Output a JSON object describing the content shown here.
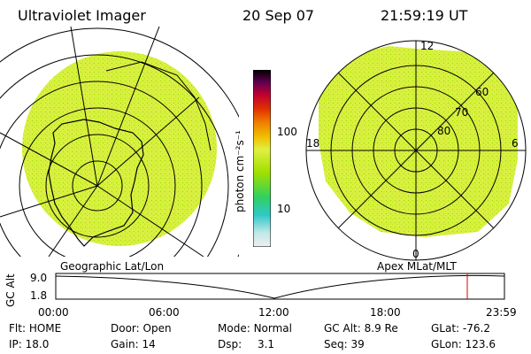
{
  "header": {
    "title": "Ultraviolet Imager",
    "date": "20 Sep 07",
    "time": "21:59:19 UT"
  },
  "left_panel": {
    "caption": "Geographic Lat/Lon"
  },
  "right_panel": {
    "caption": "Apex MLat/MLT",
    "mlt_labels": {
      "top": "12",
      "bottom": "0",
      "left": "18",
      "right": "6"
    },
    "mlat_labels": [
      "60",
      "70",
      "80"
    ]
  },
  "colorbar": {
    "unit_label": "photon cm⁻²s⁻¹",
    "ticks": [
      "100",
      "10"
    ],
    "colors": [
      "#f0f0f0",
      "#a0e0e0",
      "#30c0c0",
      "#30d060",
      "#a0e000",
      "#e0f040",
      "#f0c000",
      "#f08000",
      "#e03000",
      "#c00030",
      "#800060",
      "#300040",
      "#000000"
    ]
  },
  "alt_plot": {
    "axis_label": "GC Alt",
    "y_ticks": [
      "9.0",
      "1.8"
    ],
    "x_ticks": [
      "00:00",
      "06:00",
      "12:00",
      "18:00",
      "23:59"
    ],
    "marker_color": "#e00000"
  },
  "status": {
    "row1": [
      {
        "label": "Flt:",
        "value": "HOME"
      },
      {
        "label": "Door:",
        "value": "Open"
      },
      {
        "label": "Mode:",
        "value": "Normal"
      },
      {
        "label": "GC Alt:",
        "value": "8.9 Re"
      },
      {
        "label": "GLat:",
        "value": "-76.2"
      }
    ],
    "row2": [
      {
        "label": "IP:",
        "value": "18.0"
      },
      {
        "label": "Gain:",
        "value": "14"
      },
      {
        "label": "Dsp:",
        "value": "3.1"
      },
      {
        "label": "Seq:",
        "value": "39"
      },
      {
        "label": "GLon:",
        "value": "123.6"
      }
    ]
  },
  "image_colors": {
    "fill": "#d8f040",
    "speckle": "#9ad800"
  }
}
